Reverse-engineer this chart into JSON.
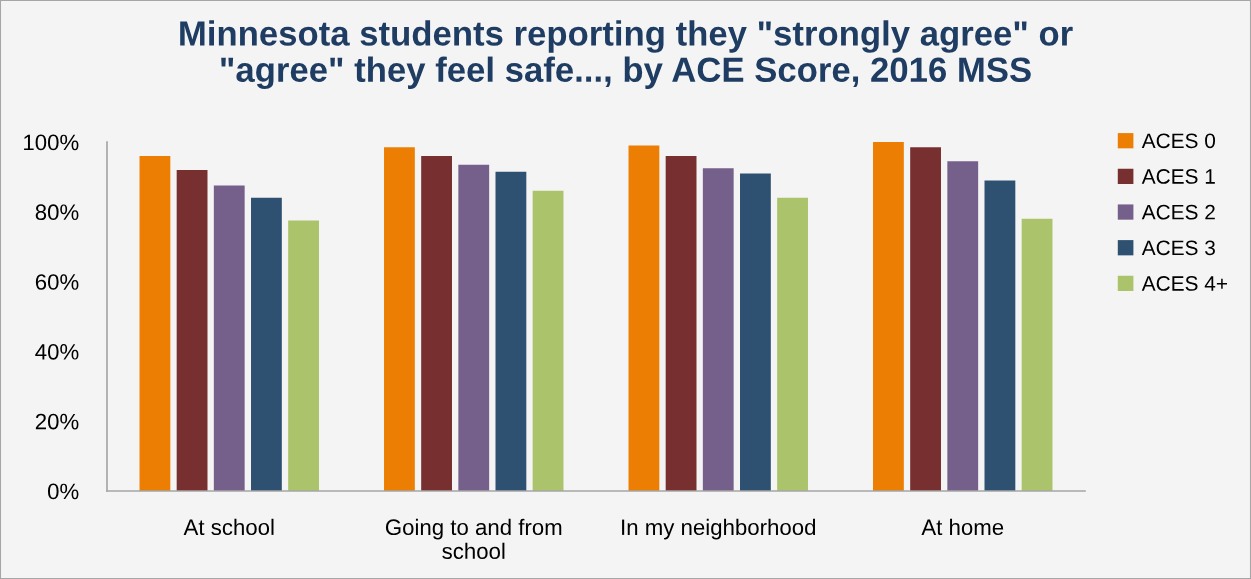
{
  "chart_data": {
    "type": "bar",
    "title": "Minnesota students reporting they \"strongly agree\" or \"agree\" they feel safe..., by ACE Score, 2016 MSS",
    "categories": [
      "At school",
      "Going to and from school",
      "In my neighborhood",
      "At home"
    ],
    "series": [
      {
        "name": "ACES 0",
        "color": "#ec7f03",
        "values": [
          96,
          98.5,
          99,
          100
        ]
      },
      {
        "name": "ACES 1",
        "color": "#77302f",
        "values": [
          92,
          96,
          96,
          98.5
        ]
      },
      {
        "name": "ACES 2",
        "color": "#75608b",
        "values": [
          87.5,
          93.5,
          92.5,
          94.5
        ]
      },
      {
        "name": "ACES 3",
        "color": "#2e5172",
        "values": [
          84,
          91.5,
          91,
          89
        ]
      },
      {
        "name": "ACES 4+",
        "color": "#abc46b",
        "values": [
          77.5,
          86,
          84,
          78
        ]
      }
    ],
    "ylim": [
      0,
      100
    ],
    "yticks": [
      {
        "value": 0,
        "label": "0%"
      },
      {
        "value": 20,
        "label": "20%"
      },
      {
        "value": 40,
        "label": "40%"
      },
      {
        "value": 60,
        "label": "60%"
      },
      {
        "value": 80,
        "label": "80%"
      },
      {
        "value": 100,
        "label": "100%"
      }
    ],
    "grid": false,
    "legend": "right"
  }
}
